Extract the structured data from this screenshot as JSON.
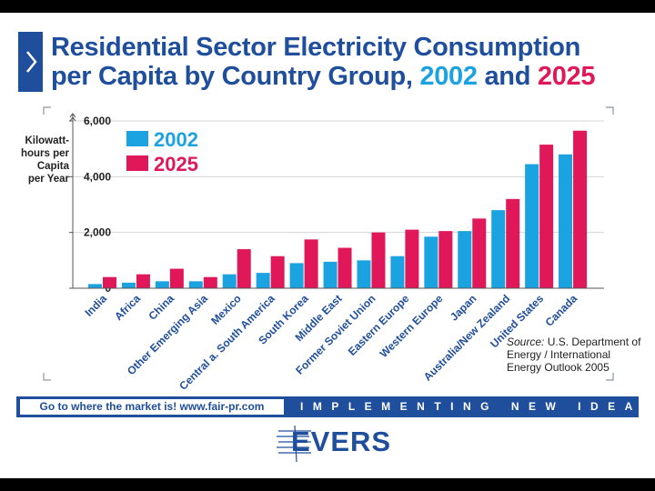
{
  "title": {
    "line1": "Residential Sector Electricity Consumption",
    "line2_prefix": "per Capita by Country Group, ",
    "year_a": "2002",
    "joiner": " and ",
    "year_b": "2025"
  },
  "ylabel_lines": [
    "Kilowatt-",
    "hours per",
    "Capita",
    "per Year"
  ],
  "source": {
    "label": "Source:",
    "text": " U.S. Department of Energy / International Energy Outlook 2005"
  },
  "footer": {
    "left": "Go to where the market is!   www.fair-pr.com",
    "right": "IMPLEMENTING NEW IDEAS"
  },
  "logo": "EVERS",
  "colors": {
    "brand_blue": "#1f4e9c",
    "series_2002": "#1aa3e0",
    "series_2025": "#e0185a"
  },
  "chart_data": {
    "type": "bar",
    "categories": [
      "India",
      "Africa",
      "China",
      "Other Emerging Asia",
      "Mexico",
      "Central a. South America",
      "South Korea",
      "Middle East",
      "Former Soviet Union",
      "Eastern Europe",
      "Western Europe",
      "Japan",
      "Australia/New Zealand",
      "United States",
      "Canada"
    ],
    "series": [
      {
        "name": "2002",
        "values": [
          150,
          200,
          250,
          250,
          500,
          550,
          900,
          950,
          1000,
          1150,
          1850,
          2050,
          2800,
          4450,
          4800
        ],
        "color": "#1aa3e0"
      },
      {
        "name": "2025",
        "values": [
          400,
          500,
          700,
          400,
          1400,
          1150,
          1750,
          1450,
          2000,
          2100,
          2050,
          2500,
          3200,
          5150,
          5650
        ],
        "color": "#e0185a"
      }
    ],
    "ylim": [
      0,
      6000
    ],
    "yticks": [
      0,
      2000,
      4000,
      6000
    ],
    "ytick_labels": [
      "0",
      "2,000",
      "4,000",
      "6,000"
    ],
    "grid": true,
    "legend": "top-left"
  }
}
